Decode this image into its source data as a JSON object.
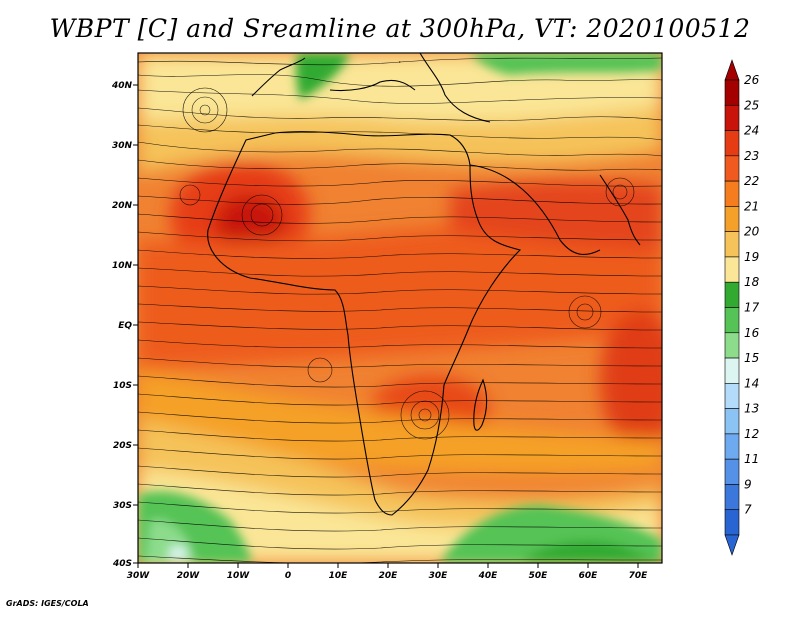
{
  "title": "WBPT [C] and Sreamline at 300hPa, VT: 2020100512",
  "credit": "GrADS: IGES/COLA",
  "lat_labels": [
    "40N",
    "30N",
    "20N",
    "10N",
    "EQ",
    "10S",
    "20S",
    "30S",
    "40S"
  ],
  "lon_labels": [
    "30W",
    "20W",
    "10W",
    "0",
    "10E",
    "20E",
    "30E",
    "40E",
    "50E",
    "60E",
    "70E"
  ],
  "colorbar": {
    "levels": [
      "26",
      "25",
      "24",
      "23",
      "22",
      "21",
      "20",
      "19",
      "18",
      "17",
      "16",
      "15",
      "14",
      "13",
      "12",
      "11",
      "9",
      "7"
    ],
    "colors": [
      "#a50000",
      "#c8140a",
      "#e63c14",
      "#f05a1e",
      "#f57d1e",
      "#f5a028",
      "#f5c35a",
      "#fae696",
      "#32aa32",
      "#55c355",
      "#8cdc8c",
      "#dcf5f0",
      "#b4dcfa",
      "#8cc3f5",
      "#6eaaf0",
      "#5591e6",
      "#3c78dc",
      "#2864d2"
    ]
  },
  "map": {
    "region": "Africa, Atlantic and western Indian Ocean",
    "lat_range": [
      -40,
      45
    ],
    "lon_range": [
      -30,
      75
    ],
    "field": "wet-bulb potential temperature (C)",
    "overlay": "streamlines"
  }
}
